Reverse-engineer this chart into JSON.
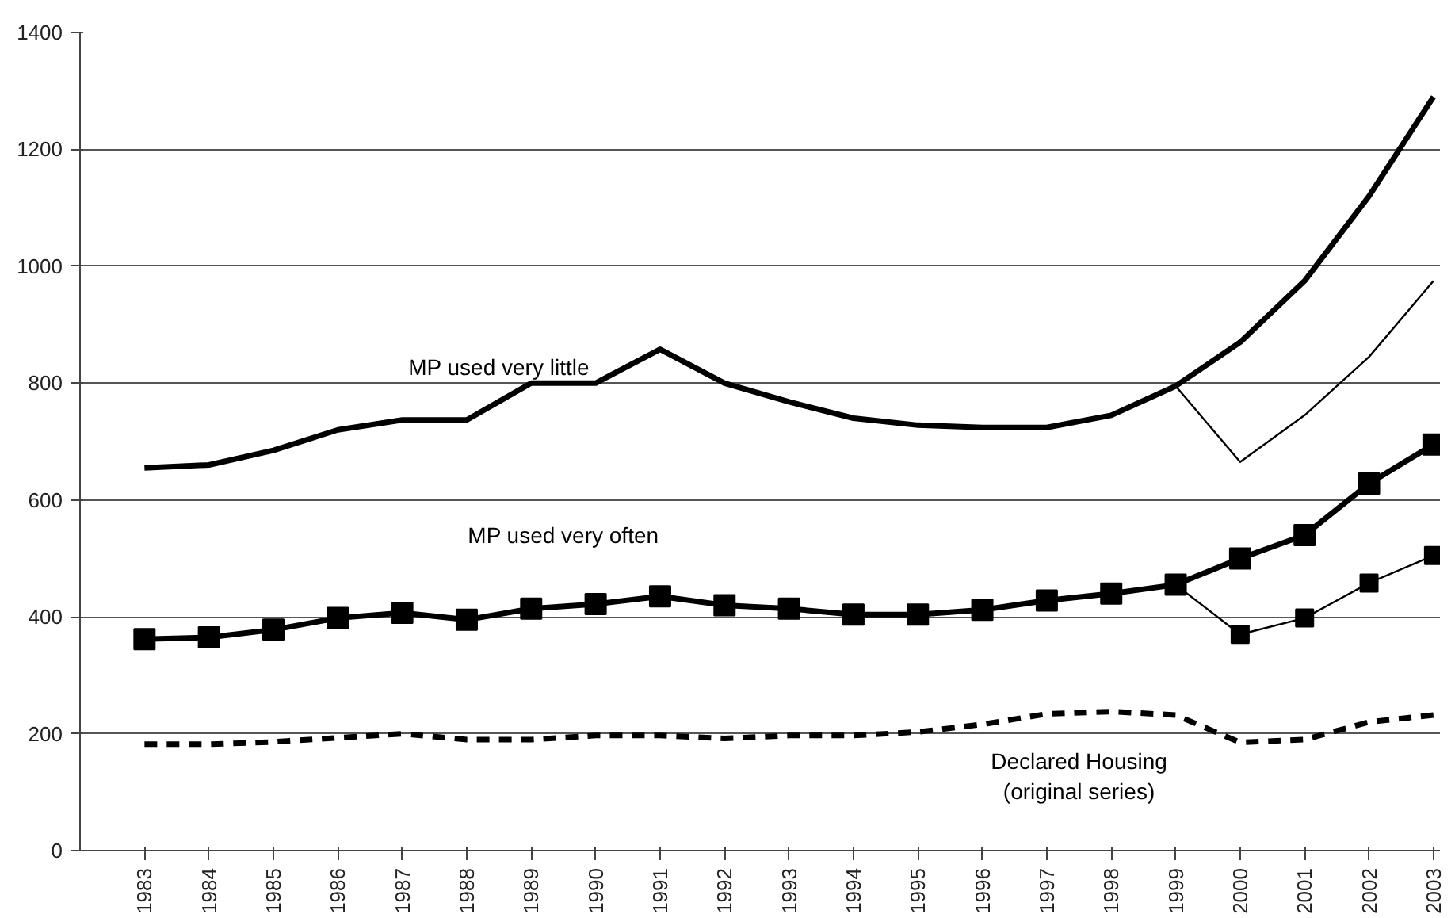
{
  "chart_data": {
    "type": "line",
    "x": [
      1983,
      1984,
      1985,
      1986,
      1987,
      1988,
      1989,
      1990,
      1991,
      1992,
      1993,
      1994,
      1995,
      1996,
      1997,
      1998,
      1999,
      2000,
      2001,
      2002,
      2003
    ],
    "xlim": [
      1982,
      2003.1
    ],
    "xticks": [
      1983,
      1984,
      1985,
      1986,
      1987,
      1988,
      1989,
      1990,
      1991,
      1992,
      1993,
      1994,
      1995,
      1996,
      1997,
      1998,
      1999,
      2000,
      2001,
      2002,
      2003
    ],
    "ylim": [
      0,
      1400
    ],
    "yticks": [
      0,
      200,
      400,
      600,
      800,
      1000,
      1200,
      1400
    ],
    "grid": "y",
    "series": [
      {
        "name": "MP used very little",
        "color": "#000000",
        "marker": "none",
        "line_style": "solid",
        "values": [
          655,
          660,
          685,
          720,
          737,
          737,
          800,
          800,
          858,
          800,
          768,
          740,
          728,
          724,
          724,
          745,
          795,
          870,
          975,
          1120,
          1290
        ]
      },
      {
        "color": "#000000",
        "marker": "none",
        "line_style": "solid",
        "x": [
          1999,
          2000,
          2001,
          2002,
          2003
        ],
        "values": [
          795,
          665,
          745,
          845,
          975
        ]
      },
      {
        "name": "MP used very often",
        "color": "#000000",
        "marker": "square",
        "line_style": "solid",
        "values": [
          362,
          365,
          378,
          398,
          407,
          395,
          414,
          422,
          435,
          420,
          414,
          404,
          404,
          412,
          428,
          440,
          455,
          500,
          540,
          628,
          695
        ]
      },
      {
        "color": "#000000",
        "marker": "square",
        "line_style": "solid",
        "x": [
          1999,
          2000,
          2001,
          2002,
          2003
        ],
        "values": [
          455,
          370,
          398,
          458,
          505
        ]
      },
      {
        "name": "Declared Housing\n(original series)",
        "color": "#000000",
        "marker": "none",
        "line_style": "dashed",
        "values": [
          182,
          182,
          186,
          193,
          200,
          190,
          190,
          197,
          197,
          192,
          197,
          197,
          203,
          216,
          234,
          238,
          232,
          185,
          190,
          220,
          232
        ]
      }
    ]
  }
}
